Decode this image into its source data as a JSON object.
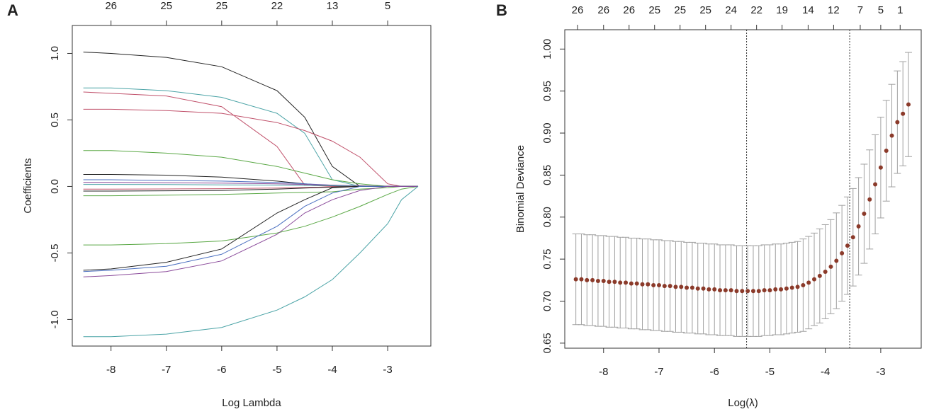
{
  "chart_data": [
    {
      "type": "line",
      "panel_label": "A",
      "xlabel": "Log Lambda",
      "ylabel": "Coefficients",
      "xlim": [
        -8.7,
        -2.22
      ],
      "ylim": [
        -1.2,
        1.21
      ],
      "xticks": [
        -8,
        -7,
        -6,
        -5,
        -4,
        -3
      ],
      "top_labels": [
        26,
        25,
        25,
        22,
        13,
        5
      ],
      "yticks": [
        {
          "value": -1,
          "label": "-1.0"
        },
        -0.5,
        {
          "value": 0,
          "label": "0.0"
        },
        0.5,
        {
          "value": 1,
          "label": "1.0"
        }
      ],
      "x": [
        -8.5,
        -8,
        -7,
        -6,
        -5,
        -4.5,
        -4,
        -3.5,
        -3,
        -2.75,
        -2.45
      ],
      "series": [
        {
          "color": "#222222",
          "values": [
            1.01,
            1.0,
            0.97,
            0.9,
            0.72,
            0.52,
            0.15,
            0,
            0,
            0,
            0
          ]
        },
        {
          "color": "#4aa3a6",
          "values": [
            0.74,
            0.74,
            0.72,
            0.67,
            0.55,
            0.4,
            0.05,
            0,
            0,
            0,
            0
          ]
        },
        {
          "color": "#c0506a",
          "values": [
            0.71,
            0.7,
            0.68,
            0.6,
            0.3,
            0.01,
            0,
            0,
            0,
            0,
            0
          ]
        },
        {
          "color": "#c0506a",
          "values": [
            0.58,
            0.58,
            0.57,
            0.55,
            0.48,
            0.42,
            0.34,
            0.22,
            0.02,
            0,
            0
          ]
        },
        {
          "color": "#5aa845",
          "values": [
            0.27,
            0.27,
            0.25,
            0.22,
            0.15,
            0.1,
            0.05,
            0.02,
            0,
            0,
            0
          ]
        },
        {
          "color": "#222222",
          "values": [
            0.09,
            0.09,
            0.085,
            0.07,
            0.04,
            0.02,
            0.005,
            0,
            0,
            0,
            0
          ]
        },
        {
          "color": "#4a6fc0",
          "values": [
            0.05,
            0.05,
            0.045,
            0.04,
            0.03,
            0.02,
            0.01,
            0,
            0,
            0,
            0
          ]
        },
        {
          "color": "#8a4a9a",
          "values": [
            0.03,
            0.03,
            0.028,
            0.025,
            0.02,
            0.015,
            0.01,
            0.005,
            0,
            0,
            0
          ]
        },
        {
          "color": "#4aa3a6",
          "values": [
            0.015,
            0.015,
            0.014,
            0.012,
            0.01,
            0.008,
            0.005,
            0.002,
            0,
            0,
            0
          ]
        },
        {
          "color": "#c0506a",
          "values": [
            -0.02,
            -0.02,
            -0.019,
            -0.017,
            -0.012,
            -0.008,
            -0.004,
            0,
            0,
            0,
            0
          ]
        },
        {
          "color": "#222222",
          "values": [
            -0.035,
            -0.035,
            -0.033,
            -0.03,
            -0.02,
            -0.012,
            -0.005,
            0,
            0,
            0,
            0
          ]
        },
        {
          "color": "#5aa845",
          "values": [
            -0.07,
            -0.07,
            -0.065,
            -0.06,
            -0.05,
            -0.045,
            -0.04,
            -0.02,
            -0.01,
            0,
            0
          ]
        },
        {
          "color": "#5aa845",
          "values": [
            -0.44,
            -0.44,
            -0.43,
            -0.41,
            -0.35,
            -0.3,
            -0.23,
            -0.15,
            -0.06,
            -0.02,
            0
          ]
        },
        {
          "color": "#222222",
          "values": [
            -0.63,
            -0.62,
            -0.57,
            -0.47,
            -0.2,
            -0.1,
            -0.01,
            0,
            0,
            0,
            0
          ]
        },
        {
          "color": "#4a6fc0",
          "values": [
            -0.64,
            -0.63,
            -0.6,
            -0.51,
            -0.3,
            -0.15,
            -0.05,
            0,
            0,
            0,
            0
          ]
        },
        {
          "color": "#8a4a9a",
          "values": [
            -0.68,
            -0.67,
            -0.64,
            -0.56,
            -0.36,
            -0.2,
            -0.1,
            -0.03,
            0,
            0,
            0
          ]
        },
        {
          "color": "#4aa3a6",
          "values": [
            -1.13,
            -1.13,
            -1.11,
            -1.06,
            -0.93,
            -0.83,
            -0.7,
            -0.5,
            -0.28,
            -0.1,
            0
          ]
        }
      ]
    },
    {
      "type": "scatter",
      "panel_label": "B",
      "xlabel": "Log(λ)",
      "ylabel": "Binomial Deviance",
      "xlim": [
        -8.7,
        -2.27
      ],
      "ylim": [
        0.644,
        1.023
      ],
      "xticks": [
        -8,
        -7,
        -6,
        -5,
        -4,
        -3
      ],
      "yticks": [
        0.65,
        {
          "value": 0.7,
          "label": "0.70"
        },
        0.75,
        {
          "value": 0.8,
          "label": "0.80"
        },
        0.85,
        {
          "value": 0.9,
          "label": "0.90"
        },
        0.95,
        {
          "value": 1,
          "label": "1.00"
        }
      ],
      "top_ticks": [
        -8.47,
        -8,
        -7.54,
        -7.08,
        -6.62,
        -6.16,
        -5.7,
        -5.24,
        -4.78,
        -4.31,
        -3.85,
        -3.37,
        -3.0,
        -2.65
      ],
      "top_labels": [
        26,
        26,
        26,
        25,
        25,
        25,
        24,
        22,
        19,
        14,
        12,
        7,
        5,
        1
      ],
      "vlines": [
        -5.42,
        -3.56
      ],
      "color": "#8b3a2a",
      "error_color": "#a0a0a0",
      "x": [
        -8.5,
        -8.4,
        -8.3,
        -8.2,
        -8.1,
        -8.0,
        -7.9,
        -7.8,
        -7.7,
        -7.6,
        -7.5,
        -7.4,
        -7.3,
        -7.2,
        -7.1,
        -7.0,
        -6.9,
        -6.8,
        -6.7,
        -6.6,
        -6.5,
        -6.4,
        -6.3,
        -6.2,
        -6.1,
        -6.0,
        -5.9,
        -5.8,
        -5.7,
        -5.6,
        -5.5,
        -5.4,
        -5.3,
        -5.2,
        -5.1,
        -5.0,
        -4.9,
        -4.8,
        -4.7,
        -4.6,
        -4.5,
        -4.4,
        -4.3,
        -4.2,
        -4.1,
        -4.0,
        -3.9,
        -3.8,
        -3.7,
        -3.6,
        -3.5,
        -3.4,
        -3.3,
        -3.2,
        -3.1,
        -3.0,
        -2.9,
        -2.8,
        -2.7,
        -2.6,
        -2.5
      ],
      "values": [
        0.726,
        0.726,
        0.725,
        0.725,
        0.724,
        0.724,
        0.723,
        0.723,
        0.722,
        0.722,
        0.721,
        0.721,
        0.72,
        0.72,
        0.719,
        0.719,
        0.718,
        0.718,
        0.717,
        0.717,
        0.716,
        0.716,
        0.715,
        0.715,
        0.714,
        0.714,
        0.713,
        0.713,
        0.713,
        0.712,
        0.712,
        0.712,
        0.712,
        0.712,
        0.713,
        0.713,
        0.714,
        0.714,
        0.715,
        0.716,
        0.717,
        0.719,
        0.722,
        0.726,
        0.73,
        0.735,
        0.741,
        0.748,
        0.757,
        0.766,
        0.776,
        0.789,
        0.804,
        0.821,
        0.839,
        0.859,
        0.879,
        0.897,
        0.913,
        0.923,
        0.934
      ],
      "errors": [
        0.054,
        0.054,
        0.054,
        0.054,
        0.054,
        0.054,
        0.054,
        0.054,
        0.054,
        0.054,
        0.054,
        0.054,
        0.054,
        0.054,
        0.054,
        0.054,
        0.054,
        0.054,
        0.054,
        0.054,
        0.054,
        0.054,
        0.054,
        0.054,
        0.054,
        0.054,
        0.054,
        0.054,
        0.054,
        0.054,
        0.054,
        0.054,
        0.054,
        0.054,
        0.054,
        0.054,
        0.054,
        0.054,
        0.054,
        0.054,
        0.054,
        0.055,
        0.055,
        0.055,
        0.056,
        0.056,
        0.056,
        0.057,
        0.057,
        0.058,
        0.058,
        0.058,
        0.059,
        0.059,
        0.059,
        0.06,
        0.06,
        0.061,
        0.061,
        0.062,
        0.062
      ]
    }
  ]
}
